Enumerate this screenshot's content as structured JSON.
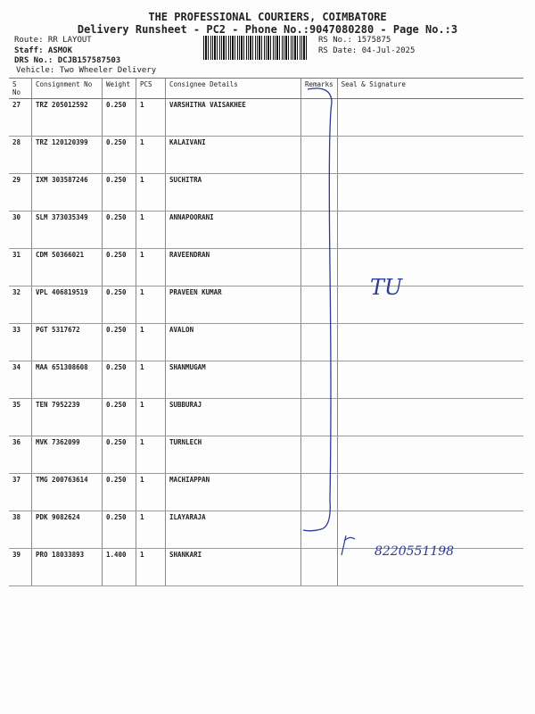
{
  "header": {
    "title": "THE PROFESSIONAL COURIERS, COIMBATORE",
    "subtitle": "Delivery Runsheet - PC2 - Phone No.:9047080280 - Page No.:3",
    "route": "Route: RR  LAYOUT",
    "staff": "Staff: ASMOK",
    "drs": "DRS No.: DCJB157587503",
    "vehicle": "Vehicle: Two Wheeler Delivery",
    "rs_no": "RS No.: 1575875",
    "rs_date": "RS Date: 04-Jul-2025"
  },
  "columns": [
    "S No",
    "Consignment No",
    "Weight",
    "PCS",
    "Consignee Details",
    "Remarks",
    "Seal & Signature"
  ],
  "rows": [
    [
      "27",
      "TRZ 205012592",
      "0.250",
      "1",
      "VARSHITHA VAISAKHEE"
    ],
    [
      "28",
      "TRZ 120120399",
      "0.250",
      "1",
      "KALAIVANI"
    ],
    [
      "29",
      "IXM 303587246",
      "0.250",
      "1",
      "SUCHITRA"
    ],
    [
      "30",
      "SLM 373035349",
      "0.250",
      "1",
      "ANNAPOORANI"
    ],
    [
      "31",
      "CDM 50366021",
      "0.250",
      "1",
      "RAVEENDRAN"
    ],
    [
      "32",
      "VPL 406819519",
      "0.250",
      "1",
      "PRAVEEN KUMAR"
    ],
    [
      "33",
      "PGT 5317672",
      "0.250",
      "1",
      "AVALON"
    ],
    [
      "34",
      "MAA 651308608",
      "0.250",
      "1",
      "SHANMUGAM"
    ],
    [
      "35",
      "TEN 7952239",
      "0.250",
      "1",
      "SUBBURAJ"
    ],
    [
      "36",
      "MVK 7362099",
      "0.250",
      "1",
      "TURNLECH"
    ],
    [
      "37",
      "TMG 200763614",
      "0.250",
      "1",
      "MACHIAPPAN"
    ],
    [
      "38",
      "PDK 9082624",
      "0.250",
      "1",
      "ILAYARAJA"
    ],
    [
      "39",
      "PRO 18033893",
      "1.400",
      "1",
      "SHANKARI"
    ]
  ],
  "handwriting": {
    "row32_mark": "TU",
    "row39_number": "8220551198"
  },
  "colors": {
    "ink": "#2a3a9a"
  }
}
